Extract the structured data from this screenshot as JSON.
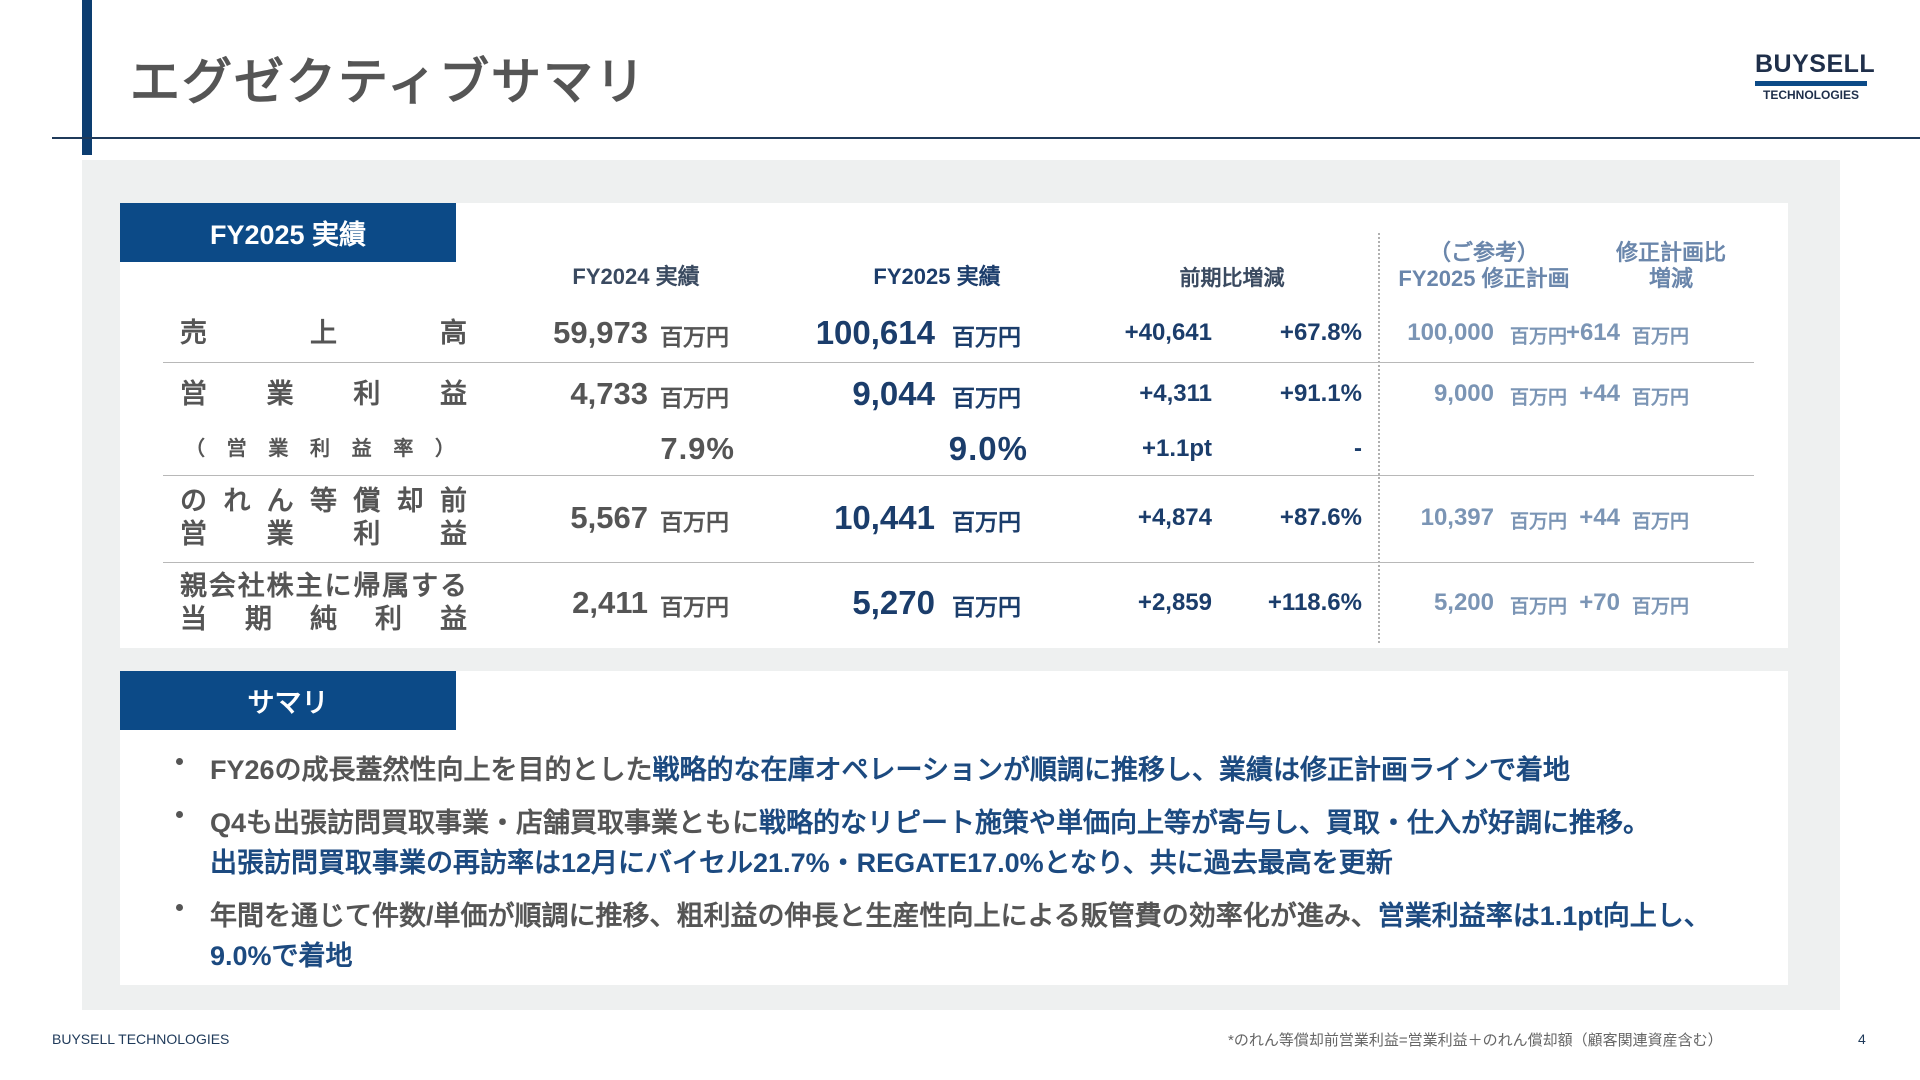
{
  "header": {
    "title": "エグゼクティブサマリ",
    "logo_top": "BUYSELL",
    "logo_bottom": "TECHNOLOGIES"
  },
  "results": {
    "tag": "FY2025 実績",
    "columns": [
      "FY2024 実績",
      "FY2025 実績",
      "前期比増減"
    ],
    "reference_header": [
      "（ご参考）",
      "FY2025 修正計画"
    ],
    "plan_diff_header": [
      "修正計画比",
      "増減"
    ],
    "rows": [
      {
        "label": [
          "売上高"
        ],
        "fy2024": "59,973",
        "fy2025": "100,614",
        "yoy_diff": "+40,641",
        "yoy_rate": "+67.8%",
        "plan": "100,000",
        "plan_diff": "+614",
        "unit": "百万円"
      },
      {
        "label": [
          "営業利益"
        ],
        "fy2024": "4,733",
        "fy2025": "9,044",
        "yoy_diff": "+4,311",
        "yoy_rate": "+91.1%",
        "plan": "9,000",
        "plan_diff": "+44",
        "unit": "百万円"
      },
      {
        "label": [
          "（営業利益率）"
        ],
        "fy2024": "7.9%",
        "fy2025": "9.0%",
        "yoy_diff": "+1.1pt",
        "yoy_rate": "-"
      },
      {
        "label": [
          "のれん等償却前",
          "営業利益"
        ],
        "fy2024": "5,567",
        "fy2025": "10,441",
        "yoy_diff": "+4,874",
        "yoy_rate": "+87.6%",
        "plan": "10,397",
        "plan_diff": "+44",
        "unit": "百万円"
      },
      {
        "label": [
          "親会社株主に帰属する",
          "当期純利益"
        ],
        "fy2024": "2,411",
        "fy2025": "5,270",
        "yoy_diff": "+2,859",
        "yoy_rate": "+118.6%",
        "plan": "5,200",
        "plan_diff": "+70",
        "unit": "百万円"
      }
    ]
  },
  "summary": {
    "tag": "サマリ",
    "bullets": [
      [
        [
          {
            "text": "FY26の成長蓋然性向上を目的とした",
            "highlight": false
          },
          {
            "text": "戦略的な在庫オペレーションが順調に推移し、業績は修正計画ラインで着地",
            "highlight": true
          }
        ]
      ],
      [
        [
          {
            "text": "Q4も出張訪問買取事業・店舗買取事業ともに",
            "highlight": false
          },
          {
            "text": "戦略的なリピート施策や単価向上等が寄与し、買取・仕入が好調に推移。",
            "highlight": true
          }
        ],
        [
          {
            "text": "出張訪問買取事業の再訪率は12月にバイセル21.7%・REGATE17.0%となり、共に過去最高を更新",
            "highlight": true
          }
        ]
      ],
      [
        [
          {
            "text": "年間を通じて件数/単価が順調に推移、粗利益の伸長と生産性向上による販管費の効率化が進み、",
            "highlight": false
          },
          {
            "text": "営業利益率は1.1pt向上し、9.0%で着地",
            "highlight": true
          }
        ]
      ]
    ]
  },
  "footer": {
    "company": "BUYSELL TECHNOLOGIES",
    "note": "*のれん等償却前営業利益=営業利益＋のれん償却額（顧客関連資産含む）",
    "page": "4"
  }
}
